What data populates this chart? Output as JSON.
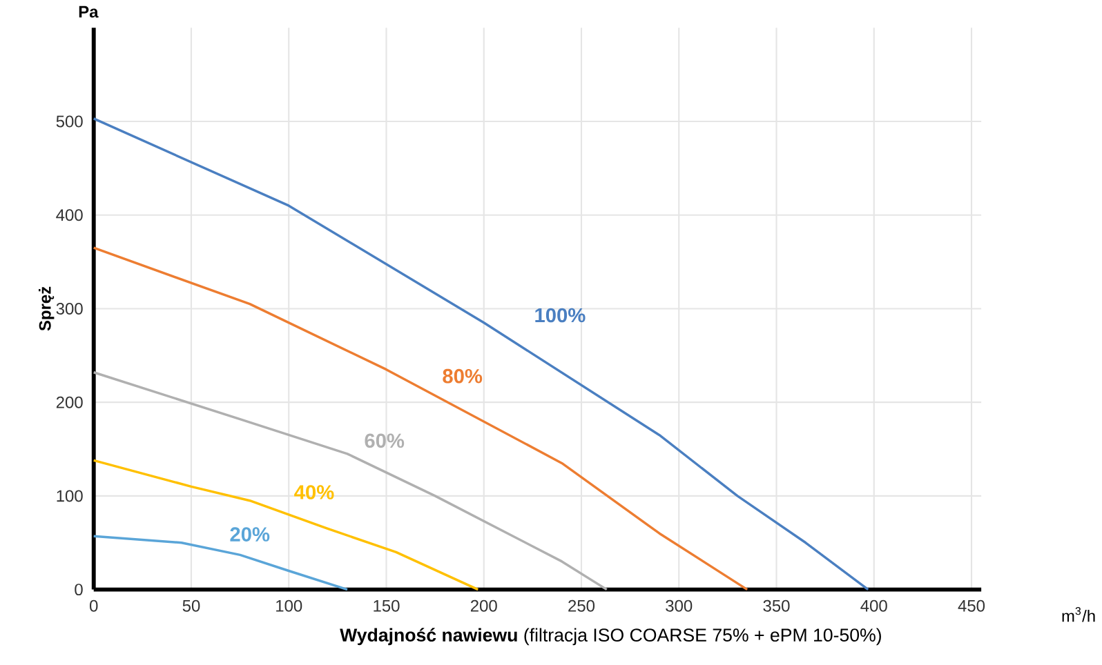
{
  "chart_data": {
    "type": "line",
    "xlabel": "**Wydajność nawiewu** (filtracja ISO COARSE 75% + ePM 10-50%)",
    "ylabel": "Spręż",
    "annotations": [
      "Pa",
      "m$^{3}$/h"
    ],
    "xlim": [
      0,
      455
    ],
    "ylim": [
      0,
      600
    ],
    "xticks": [
      0,
      50,
      100,
      150,
      200,
      250,
      300,
      350,
      400,
      450
    ],
    "yticks": [
      0,
      100,
      200,
      300,
      400,
      500
    ],
    "grid": true,
    "marker": "none",
    "line_style": "solid",
    "series": [
      {
        "name": "100%",
        "color": "#4a7fc1",
        "x": [
          0,
          100,
          200,
          290,
          330,
          365,
          397
        ],
        "values": [
          503,
          410,
          285,
          165,
          100,
          50,
          0
        ]
      },
      {
        "name": "80%",
        "color": "#ed7d31",
        "x": [
          0,
          80,
          150,
          240,
          290,
          335
        ],
        "values": [
          365,
          305,
          235,
          135,
          60,
          0
        ]
      },
      {
        "name": "60%",
        "color": "#b0b0b0",
        "x": [
          0,
          75,
          130,
          175,
          240,
          263
        ],
        "values": [
          232,
          182,
          145,
          100,
          30,
          0
        ]
      },
      {
        "name": "40%",
        "color": "#ffc000",
        "x": [
          0,
          50,
          80,
          120,
          155,
          197
        ],
        "values": [
          138,
          110,
          95,
          65,
          40,
          0
        ]
      },
      {
        "name": "20%",
        "color": "#5aa5d8",
        "x": [
          0,
          45,
          75,
          100,
          130
        ],
        "values": [
          57,
          50,
          37,
          20,
          0
        ]
      }
    ]
  }
}
